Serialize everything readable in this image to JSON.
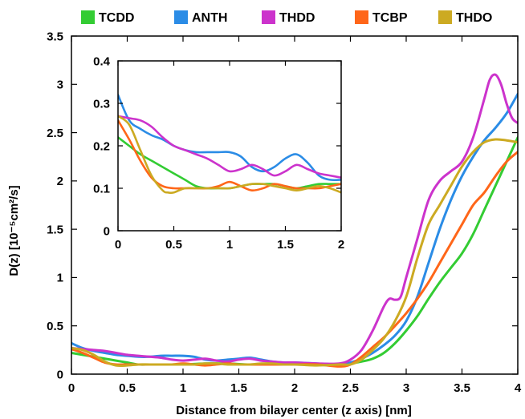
{
  "chart_data": {
    "type": "line",
    "xlabel": "Distance from bilayer center (z axis) [nm]",
    "ylabel": "D(z) [10⁻⁵cm²/s]",
    "xlim": [
      0,
      4
    ],
    "ylim": [
      0,
      3.5
    ],
    "x_ticks": [
      "0",
      "0.5",
      "1",
      "1.5",
      "2",
      "2.5",
      "3",
      "3.5",
      "4"
    ],
    "y_ticks": [
      "0",
      "0.5",
      "1",
      "1.5",
      "2",
      "2.5",
      "3",
      "3.5"
    ],
    "legend_position": "top",
    "grid": false,
    "series": [
      {
        "name": "TCDD",
        "color": "#33cc33",
        "x": [
          0,
          0.1,
          0.2,
          0.3,
          0.4,
          0.5,
          0.6,
          0.7,
          0.8,
          0.9,
          1.0,
          1.2,
          1.4,
          1.6,
          1.8,
          2.0,
          2.2,
          2.4,
          2.5,
          2.6,
          2.7,
          2.8,
          2.9,
          3.0,
          3.1,
          3.2,
          3.3,
          3.4,
          3.5,
          3.6,
          3.7,
          3.8,
          3.9,
          4.0
        ],
        "y": [
          0.22,
          0.2,
          0.18,
          0.16,
          0.14,
          0.12,
          0.1,
          0.1,
          0.1,
          0.1,
          0.1,
          0.11,
          0.11,
          0.1,
          0.11,
          0.11,
          0.1,
          0.1,
          0.11,
          0.13,
          0.16,
          0.22,
          0.32,
          0.45,
          0.6,
          0.78,
          0.95,
          1.1,
          1.25,
          1.45,
          1.7,
          1.95,
          2.2,
          2.45
        ]
      },
      {
        "name": "ANTH",
        "color": "#2b8ce6",
        "x": [
          0,
          0.1,
          0.2,
          0.3,
          0.4,
          0.5,
          0.6,
          0.7,
          0.8,
          0.9,
          1.0,
          1.1,
          1.2,
          1.3,
          1.4,
          1.5,
          1.6,
          1.7,
          1.8,
          1.9,
          2.0,
          2.2,
          2.4,
          2.5,
          2.6,
          2.7,
          2.8,
          2.9,
          3.0,
          3.1,
          3.2,
          3.3,
          3.4,
          3.5,
          3.6,
          3.7,
          3.8,
          3.9,
          4.0
        ],
        "y": [
          0.32,
          0.27,
          0.24,
          0.22,
          0.2,
          0.19,
          0.18,
          0.18,
          0.19,
          0.19,
          0.19,
          0.18,
          0.15,
          0.14,
          0.15,
          0.16,
          0.17,
          0.15,
          0.13,
          0.12,
          0.12,
          0.11,
          0.1,
          0.12,
          0.16,
          0.22,
          0.3,
          0.4,
          0.55,
          0.8,
          1.15,
          1.5,
          1.8,
          2.05,
          2.25,
          2.42,
          2.55,
          2.7,
          2.9
        ]
      },
      {
        "name": "THDD",
        "color": "#cc33cc",
        "x": [
          0,
          0.1,
          0.2,
          0.3,
          0.4,
          0.5,
          0.6,
          0.7,
          0.8,
          0.9,
          1.0,
          1.1,
          1.2,
          1.3,
          1.4,
          1.5,
          1.6,
          1.7,
          1.8,
          1.9,
          2.0,
          2.2,
          2.4,
          2.5,
          2.6,
          2.7,
          2.8,
          2.85,
          2.9,
          2.95,
          3.0,
          3.1,
          3.2,
          3.3,
          3.4,
          3.5,
          3.6,
          3.7,
          3.75,
          3.8,
          3.85,
          3.9,
          3.95,
          4.0
        ],
        "y": [
          0.27,
          0.26,
          0.25,
          0.24,
          0.22,
          0.2,
          0.19,
          0.18,
          0.17,
          0.15,
          0.14,
          0.15,
          0.16,
          0.14,
          0.13,
          0.15,
          0.16,
          0.14,
          0.13,
          0.12,
          0.12,
          0.11,
          0.11,
          0.15,
          0.25,
          0.45,
          0.7,
          0.78,
          0.77,
          0.8,
          1.0,
          1.4,
          1.8,
          2.0,
          2.1,
          2.2,
          2.45,
          2.85,
          3.05,
          3.1,
          3.0,
          2.8,
          2.65,
          2.6
        ]
      },
      {
        "name": "TCBP",
        "color": "#ff6619",
        "x": [
          0,
          0.1,
          0.2,
          0.3,
          0.4,
          0.5,
          0.6,
          0.7,
          0.8,
          0.9,
          1.0,
          1.1,
          1.2,
          1.3,
          1.4,
          1.5,
          1.6,
          1.7,
          1.8,
          1.9,
          2.0,
          2.2,
          2.4,
          2.5,
          2.6,
          2.7,
          2.8,
          2.9,
          3.0,
          3.1,
          3.2,
          3.3,
          3.4,
          3.5,
          3.6,
          3.7,
          3.8,
          3.9,
          4.0
        ],
        "y": [
          0.26,
          0.22,
          0.17,
          0.12,
          0.1,
          0.1,
          0.1,
          0.1,
          0.1,
          0.1,
          0.11,
          0.1,
          0.09,
          0.1,
          0.11,
          0.1,
          0.1,
          0.1,
          0.1,
          0.1,
          0.1,
          0.1,
          0.08,
          0.1,
          0.18,
          0.28,
          0.38,
          0.5,
          0.63,
          0.78,
          0.95,
          1.15,
          1.35,
          1.55,
          1.75,
          1.88,
          2.05,
          2.2,
          2.3
        ]
      },
      {
        "name": "THDO",
        "color": "#ccaa22",
        "x": [
          0,
          0.1,
          0.2,
          0.3,
          0.4,
          0.5,
          0.6,
          0.7,
          0.8,
          0.9,
          1.0,
          1.1,
          1.2,
          1.3,
          1.4,
          1.5,
          1.6,
          1.7,
          1.8,
          1.9,
          2.0,
          2.2,
          2.4,
          2.5,
          2.6,
          2.7,
          2.8,
          2.9,
          3.0,
          3.1,
          3.2,
          3.3,
          3.4,
          3.5,
          3.6,
          3.7,
          3.8,
          3.9,
          4.0
        ],
        "y": [
          0.27,
          0.25,
          0.2,
          0.13,
          0.09,
          0.09,
          0.1,
          0.1,
          0.1,
          0.1,
          0.1,
          0.1,
          0.11,
          0.11,
          0.1,
          0.1,
          0.1,
          0.11,
          0.11,
          0.1,
          0.1,
          0.09,
          0.1,
          0.1,
          0.15,
          0.25,
          0.37,
          0.55,
          0.8,
          1.2,
          1.55,
          1.75,
          1.95,
          2.15,
          2.3,
          2.4,
          2.43,
          2.42,
          2.4
        ]
      }
    ],
    "inset": {
      "type": "line",
      "xlim": [
        0,
        2
      ],
      "ylim": [
        0,
        0.4
      ],
      "x_ticks": [
        "0",
        "0.5",
        "1",
        "1.5",
        "2"
      ],
      "y_ticks": [
        "0",
        "0.1",
        "0.2",
        "0.3",
        "0.4"
      ],
      "series": [
        {
          "name": "TCDD",
          "color": "#33cc33",
          "x": [
            0,
            0.1,
            0.2,
            0.3,
            0.4,
            0.5,
            0.6,
            0.7,
            0.8,
            0.9,
            1.0,
            1.1,
            1.2,
            1.3,
            1.4,
            1.5,
            1.6,
            1.7,
            1.8,
            1.9,
            2.0
          ],
          "y": [
            0.22,
            0.2,
            0.18,
            0.165,
            0.15,
            0.135,
            0.12,
            0.105,
            0.1,
            0.1,
            0.1,
            0.105,
            0.11,
            0.11,
            0.11,
            0.105,
            0.1,
            0.105,
            0.11,
            0.11,
            0.11
          ]
        },
        {
          "name": "ANTH",
          "color": "#2b8ce6",
          "x": [
            0,
            0.1,
            0.2,
            0.3,
            0.4,
            0.5,
            0.6,
            0.7,
            0.8,
            0.9,
            1.0,
            1.1,
            1.2,
            1.3,
            1.4,
            1.5,
            1.6,
            1.7,
            1.8,
            1.9,
            2.0
          ],
          "y": [
            0.32,
            0.26,
            0.24,
            0.225,
            0.215,
            0.2,
            0.19,
            0.185,
            0.185,
            0.185,
            0.185,
            0.175,
            0.15,
            0.14,
            0.15,
            0.17,
            0.18,
            0.16,
            0.13,
            0.12,
            0.12
          ]
        },
        {
          "name": "THDD",
          "color": "#cc33cc",
          "x": [
            0,
            0.1,
            0.2,
            0.3,
            0.4,
            0.5,
            0.6,
            0.7,
            0.8,
            0.9,
            1.0,
            1.1,
            1.2,
            1.3,
            1.4,
            1.5,
            1.6,
            1.7,
            1.8,
            1.9,
            2.0
          ],
          "y": [
            0.27,
            0.265,
            0.26,
            0.245,
            0.22,
            0.2,
            0.19,
            0.18,
            0.17,
            0.155,
            0.14,
            0.145,
            0.155,
            0.145,
            0.13,
            0.14,
            0.155,
            0.145,
            0.135,
            0.13,
            0.125
          ]
        },
        {
          "name": "TCBP",
          "color": "#ff6619",
          "x": [
            0,
            0.1,
            0.2,
            0.3,
            0.4,
            0.5,
            0.6,
            0.7,
            0.8,
            0.9,
            1.0,
            1.1,
            1.2,
            1.3,
            1.4,
            1.5,
            1.6,
            1.7,
            1.8,
            1.9,
            2.0
          ],
          "y": [
            0.26,
            0.215,
            0.165,
            0.125,
            0.105,
            0.1,
            0.1,
            0.1,
            0.1,
            0.105,
            0.115,
            0.105,
            0.095,
            0.1,
            0.11,
            0.105,
            0.1,
            0.1,
            0.1,
            0.105,
            0.11
          ]
        },
        {
          "name": "THDO",
          "color": "#ccaa22",
          "x": [
            0,
            0.1,
            0.2,
            0.3,
            0.4,
            0.45,
            0.5,
            0.6,
            0.7,
            0.8,
            0.9,
            1.0,
            1.1,
            1.2,
            1.3,
            1.4,
            1.5,
            1.6,
            1.7,
            1.8,
            1.9,
            2.0
          ],
          "y": [
            0.27,
            0.25,
            0.19,
            0.13,
            0.095,
            0.09,
            0.09,
            0.1,
            0.1,
            0.1,
            0.1,
            0.1,
            0.105,
            0.11,
            0.11,
            0.105,
            0.1,
            0.095,
            0.1,
            0.105,
            0.1,
            0.09
          ]
        }
      ]
    }
  }
}
